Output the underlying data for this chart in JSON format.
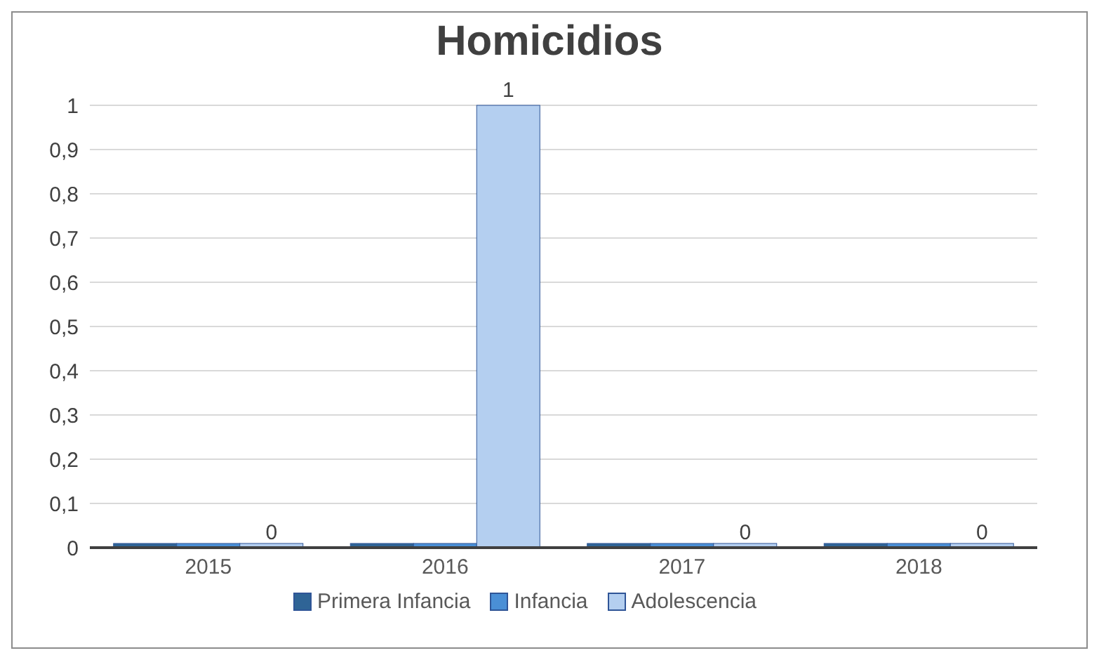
{
  "chart_data": {
    "type": "bar",
    "title": "Homicidios",
    "categories": [
      "2015",
      "2016",
      "2017",
      "2018"
    ],
    "series": [
      {
        "name": "Primera Infancia",
        "color": "#2f6496",
        "values": [
          0,
          0,
          0,
          0
        ]
      },
      {
        "name": "Infancia",
        "color": "#4a8fd6",
        "values": [
          0,
          0,
          0,
          0
        ]
      },
      {
        "name": "Adolescencia",
        "color": "#b4cff0",
        "values": [
          0,
          1,
          0,
          0
        ],
        "value_labels": [
          "0",
          "1",
          "0",
          "0"
        ]
      }
    ],
    "ylim": [
      0,
      1
    ],
    "yticks": [
      0,
      {
        "value": 0.1,
        "label": "0,1"
      },
      {
        "value": 0.2,
        "label": "0,2"
      },
      {
        "value": 0.3,
        "label": "0,3"
      },
      {
        "value": 0.4,
        "label": "0,4"
      },
      {
        "value": 0.5,
        "label": "0,5"
      },
      {
        "value": 0.6,
        "label": "0,6"
      },
      {
        "value": 0.7,
        "label": "0,7"
      },
      {
        "value": 0.8,
        "label": "0,8"
      },
      {
        "value": 0.9,
        "label": "0,9"
      },
      1
    ],
    "grid": "y",
    "legend": "bottom"
  }
}
